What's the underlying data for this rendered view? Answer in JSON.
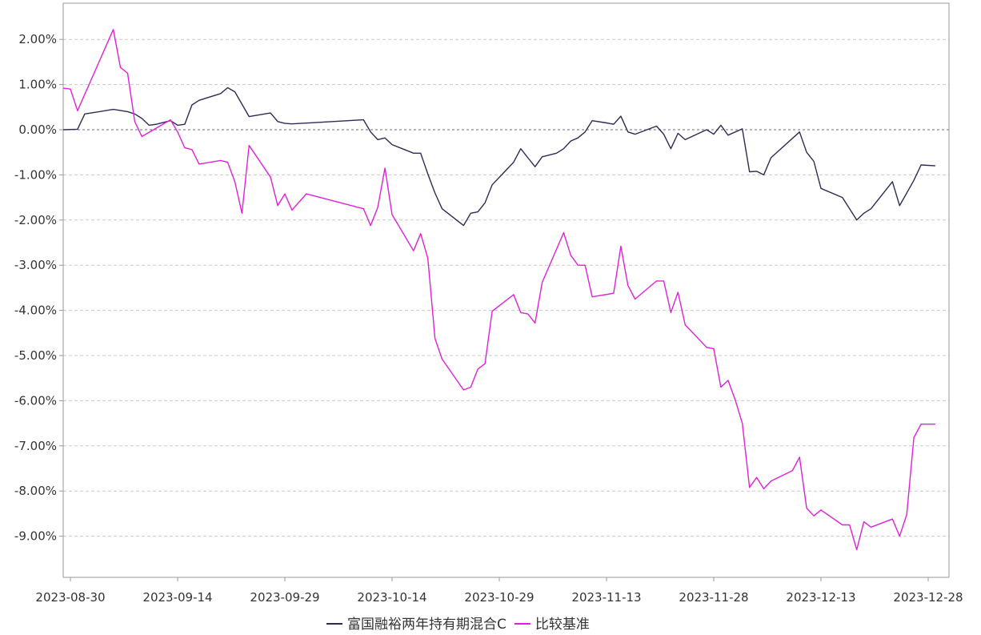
{
  "chart_data": {
    "type": "line",
    "x_ticks": [
      "2023-08-30",
      "2023-09-14",
      "2023-09-29",
      "2023-10-14",
      "2023-10-29",
      "2023-11-13",
      "2023-11-28",
      "2023-12-13",
      "2023-12-28"
    ],
    "x_range": [
      "2023-08-30",
      "2023-12-31"
    ],
    "y_ticks": [
      "2.00%",
      "1.00%",
      "0.00%",
      "-1.00%",
      "-2.00%",
      "-3.00%",
      "-4.00%",
      "-5.00%",
      "-6.00%",
      "-7.00%",
      "-8.00%",
      "-9.00%"
    ],
    "ylim": [
      -9.8,
      2.8
    ],
    "y_unit": "%",
    "grid": "horizontal dashed",
    "zero_line": "dashed",
    "legend_placement": "bottom-center",
    "series": [
      {
        "name": "富国融裕两年持有期混合C",
        "color": "#2b2b55",
        "points": [
          [
            "2023-08-29",
            0.0
          ],
          [
            "2023-08-31",
            0.01
          ],
          [
            "2023-09-01",
            0.35
          ],
          [
            "2023-09-05",
            0.45
          ],
          [
            "2023-09-07",
            0.4
          ],
          [
            "2023-09-08",
            0.35
          ],
          [
            "2023-09-09",
            0.25
          ],
          [
            "2023-09-10",
            0.1
          ],
          [
            "2023-09-11",
            0.12
          ],
          [
            "2023-09-13",
            0.2
          ],
          [
            "2023-09-14",
            0.1
          ],
          [
            "2023-09-15",
            0.12
          ],
          [
            "2023-09-16",
            0.55
          ],
          [
            "2023-09-17",
            0.65
          ],
          [
            "2023-09-20",
            0.8
          ],
          [
            "2023-09-21",
            0.93
          ],
          [
            "2023-09-22",
            0.84
          ],
          [
            "2023-09-24",
            0.29
          ],
          [
            "2023-09-27",
            0.37
          ],
          [
            "2023-09-28",
            0.18
          ],
          [
            "2023-09-29",
            0.14
          ],
          [
            "2023-09-30",
            0.13
          ],
          [
            "2023-10-10",
            0.22
          ],
          [
            "2023-10-11",
            -0.05
          ],
          [
            "2023-10-12",
            -0.22
          ],
          [
            "2023-10-13",
            -0.18
          ],
          [
            "2023-10-14",
            -0.33
          ],
          [
            "2023-10-17",
            -0.52
          ],
          [
            "2023-10-18",
            -0.52
          ],
          [
            "2023-10-19",
            -0.98
          ],
          [
            "2023-10-20",
            -1.4
          ],
          [
            "2023-10-21",
            -1.75
          ],
          [
            "2023-10-24",
            -2.12
          ],
          [
            "2023-10-25",
            -1.85
          ],
          [
            "2023-10-26",
            -1.82
          ],
          [
            "2023-10-27",
            -1.62
          ],
          [
            "2023-10-28",
            -1.22
          ],
          [
            "2023-10-31",
            -0.72
          ],
          [
            "2023-11-01",
            -0.42
          ],
          [
            "2023-11-02",
            -0.62
          ],
          [
            "2023-11-03",
            -0.82
          ],
          [
            "2023-11-04",
            -0.6
          ],
          [
            "2023-11-06",
            -0.52
          ],
          [
            "2023-11-07",
            -0.42
          ],
          [
            "2023-11-08",
            -0.25
          ],
          [
            "2023-11-09",
            -0.18
          ],
          [
            "2023-11-10",
            -0.05
          ],
          [
            "2023-11-11",
            0.2
          ],
          [
            "2023-11-13",
            0.15
          ],
          [
            "2023-11-14",
            0.12
          ],
          [
            "2023-11-15",
            0.3
          ],
          [
            "2023-11-16",
            -0.05
          ],
          [
            "2023-11-17",
            -0.1
          ],
          [
            "2023-11-20",
            0.08
          ],
          [
            "2023-11-21",
            -0.1
          ],
          [
            "2023-11-22",
            -0.42
          ],
          [
            "2023-11-23",
            -0.08
          ],
          [
            "2023-11-24",
            -0.22
          ],
          [
            "2023-11-27",
            0.0
          ],
          [
            "2023-11-28",
            -0.1
          ],
          [
            "2023-11-29",
            0.1
          ],
          [
            "2023-11-30",
            -0.12
          ],
          [
            "2023-12-02",
            0.02
          ],
          [
            "2023-12-03",
            -0.93
          ],
          [
            "2023-12-04",
            -0.92
          ],
          [
            "2023-12-05",
            -1.0
          ],
          [
            "2023-12-06",
            -0.62
          ],
          [
            "2023-12-10",
            -0.05
          ],
          [
            "2023-12-11",
            -0.5
          ],
          [
            "2023-12-12",
            -0.7
          ],
          [
            "2023-12-13",
            -1.3
          ],
          [
            "2023-12-16",
            -1.5
          ],
          [
            "2023-12-18",
            -2.0
          ],
          [
            "2023-12-19",
            -1.85
          ],
          [
            "2023-12-20",
            -1.75
          ],
          [
            "2023-12-23",
            -1.15
          ],
          [
            "2023-12-24",
            -1.68
          ],
          [
            "2023-12-26",
            -1.12
          ],
          [
            "2023-12-27",
            -0.78
          ],
          [
            "2023-12-29",
            -0.8
          ]
        ]
      },
      {
        "name": "比较基准",
        "color": "#e020d8",
        "points": [
          [
            "2023-08-29",
            0.92
          ],
          [
            "2023-08-30",
            0.9
          ],
          [
            "2023-08-31",
            0.42
          ],
          [
            "2023-09-05",
            2.22
          ],
          [
            "2023-09-06",
            1.38
          ],
          [
            "2023-09-07",
            1.25
          ],
          [
            "2023-09-08",
            0.18
          ],
          [
            "2023-09-09",
            -0.15
          ],
          [
            "2023-09-13",
            0.22
          ],
          [
            "2023-09-14",
            -0.05
          ],
          [
            "2023-09-15",
            -0.4
          ],
          [
            "2023-09-16",
            -0.44
          ],
          [
            "2023-09-17",
            -0.76
          ],
          [
            "2023-09-20",
            -0.68
          ],
          [
            "2023-09-21",
            -0.72
          ],
          [
            "2023-09-22",
            -1.15
          ],
          [
            "2023-09-23",
            -1.85
          ],
          [
            "2023-09-24",
            -0.35
          ],
          [
            "2023-09-27",
            -1.05
          ],
          [
            "2023-09-28",
            -1.68
          ],
          [
            "2023-09-29",
            -1.42
          ],
          [
            "2023-09-30",
            -1.78
          ],
          [
            "2023-10-02",
            -1.42
          ],
          [
            "2023-10-10",
            -1.75
          ],
          [
            "2023-10-11",
            -2.12
          ],
          [
            "2023-10-12",
            -1.72
          ],
          [
            "2023-10-13",
            -0.85
          ],
          [
            "2023-10-14",
            -1.88
          ],
          [
            "2023-10-17",
            -2.68
          ],
          [
            "2023-10-18",
            -2.3
          ],
          [
            "2023-10-19",
            -2.85
          ],
          [
            "2023-10-20",
            -4.62
          ],
          [
            "2023-10-21",
            -5.08
          ],
          [
            "2023-10-24",
            -5.76
          ],
          [
            "2023-10-25",
            -5.7
          ],
          [
            "2023-10-26",
            -5.3
          ],
          [
            "2023-10-27",
            -5.18
          ],
          [
            "2023-10-28",
            -4.02
          ],
          [
            "2023-10-31",
            -3.65
          ],
          [
            "2023-11-01",
            -4.05
          ],
          [
            "2023-11-02",
            -4.08
          ],
          [
            "2023-11-03",
            -4.28
          ],
          [
            "2023-11-04",
            -3.38
          ],
          [
            "2023-11-07",
            -2.28
          ],
          [
            "2023-11-08",
            -2.78
          ],
          [
            "2023-11-09",
            -3.0
          ],
          [
            "2023-11-10",
            -3.0
          ],
          [
            "2023-11-11",
            -3.7
          ],
          [
            "2023-11-14",
            -3.62
          ],
          [
            "2023-11-15",
            -2.58
          ],
          [
            "2023-11-16",
            -3.45
          ],
          [
            "2023-11-17",
            -3.75
          ],
          [
            "2023-11-20",
            -3.35
          ],
          [
            "2023-11-21",
            -3.35
          ],
          [
            "2023-11-22",
            -4.05
          ],
          [
            "2023-11-23",
            -3.6
          ],
          [
            "2023-11-24",
            -4.32
          ],
          [
            "2023-11-27",
            -4.82
          ],
          [
            "2023-11-28",
            -4.85
          ],
          [
            "2023-11-29",
            -5.7
          ],
          [
            "2023-11-30",
            -5.55
          ],
          [
            "2023-12-01",
            -5.98
          ],
          [
            "2023-12-02",
            -6.5
          ],
          [
            "2023-12-03",
            -7.92
          ],
          [
            "2023-12-04",
            -7.7
          ],
          [
            "2023-12-05",
            -7.95
          ],
          [
            "2023-12-06",
            -7.78
          ],
          [
            "2023-12-09",
            -7.55
          ],
          [
            "2023-12-10",
            -7.25
          ],
          [
            "2023-12-11",
            -8.38
          ],
          [
            "2023-12-12",
            -8.55
          ],
          [
            "2023-12-13",
            -8.42
          ],
          [
            "2023-12-16",
            -8.75
          ],
          [
            "2023-12-17",
            -8.75
          ],
          [
            "2023-12-18",
            -9.3
          ],
          [
            "2023-12-19",
            -8.68
          ],
          [
            "2023-12-20",
            -8.8
          ],
          [
            "2023-12-23",
            -8.62
          ],
          [
            "2023-12-24",
            -9.0
          ],
          [
            "2023-12-25",
            -8.52
          ],
          [
            "2023-12-26",
            -6.82
          ],
          [
            "2023-12-27",
            -6.52
          ],
          [
            "2023-12-29",
            -6.52
          ]
        ]
      }
    ]
  }
}
